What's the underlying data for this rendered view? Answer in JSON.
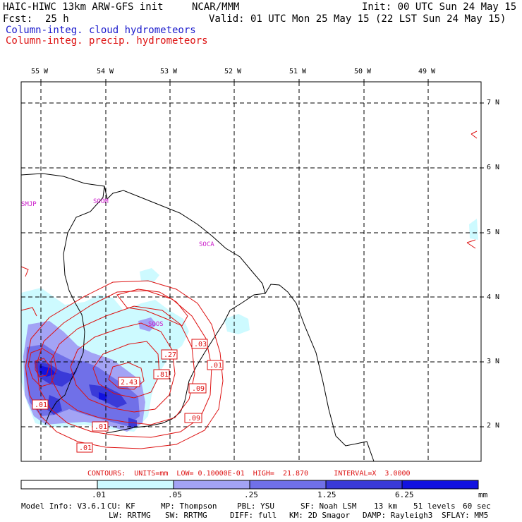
{
  "header": {
    "model": "HAIC-HIWC 13km ARW-GFS init",
    "org": "NCAR/MMM",
    "init": "Init: 00 UTC Sun 24 May 15",
    "fcst_label": "Fcst:",
    "fcst_value": "25 h",
    "valid": "Valid: 01 UTC Mon 25 May 15 (22 LST Sun 24 May 15)",
    "field1": "Column-integ. cloud hydrometeors",
    "field2": "Column-integ. precip. hydrometeors"
  },
  "axes": {
    "lon_labels": [
      "55 W",
      "54 W",
      "53 W",
      "52 W",
      "51 W",
      "50 W",
      "49 W"
    ],
    "lat_labels": [
      "7 N",
      "6 N",
      "5 N",
      "4 N",
      "3 N",
      "2 N"
    ]
  },
  "stations": [
    "SMJP",
    "SOOM",
    "SOCA",
    "SOOS"
  ],
  "contour_labels": [
    ".03",
    ".01",
    ".27",
    ".81",
    "2.43",
    ".09",
    ".09",
    ".01",
    ".01",
    ".01",
    ".09"
  ],
  "contours_info": "CONTOURS:  UNITS=mm  LOW= 0.10000E-01  HIGH=  21.870      INTERVAL=X  3.0000",
  "colorbar": {
    "ticks": [
      ".01",
      ".05",
      ".25",
      "1.25",
      "6.25"
    ],
    "units": "mm",
    "colors": [
      "#ffffff",
      "#cdfaff",
      "#a3a3f5",
      "#7070e8",
      "#3a3ad8",
      "#1212e0"
    ]
  },
  "footer": {
    "line1": [
      "Model Info: V3.6.1",
      "CU: KF",
      "MP: Thompson",
      "PBL: YSU",
      "SF: Noah LSM",
      "13 km",
      "51 levels",
      "60 sec"
    ],
    "line2": [
      "LW: RRTMG",
      "SW: RRTMG",
      "DIFF: full",
      "KM: 2D Smagor",
      "DAMP: Rayleigh3",
      "SFLAY: MM5"
    ]
  },
  "colors": {
    "cloud_field": "#1a1acc",
    "precip_field": "#dd1111",
    "station": "#cc22cc"
  }
}
